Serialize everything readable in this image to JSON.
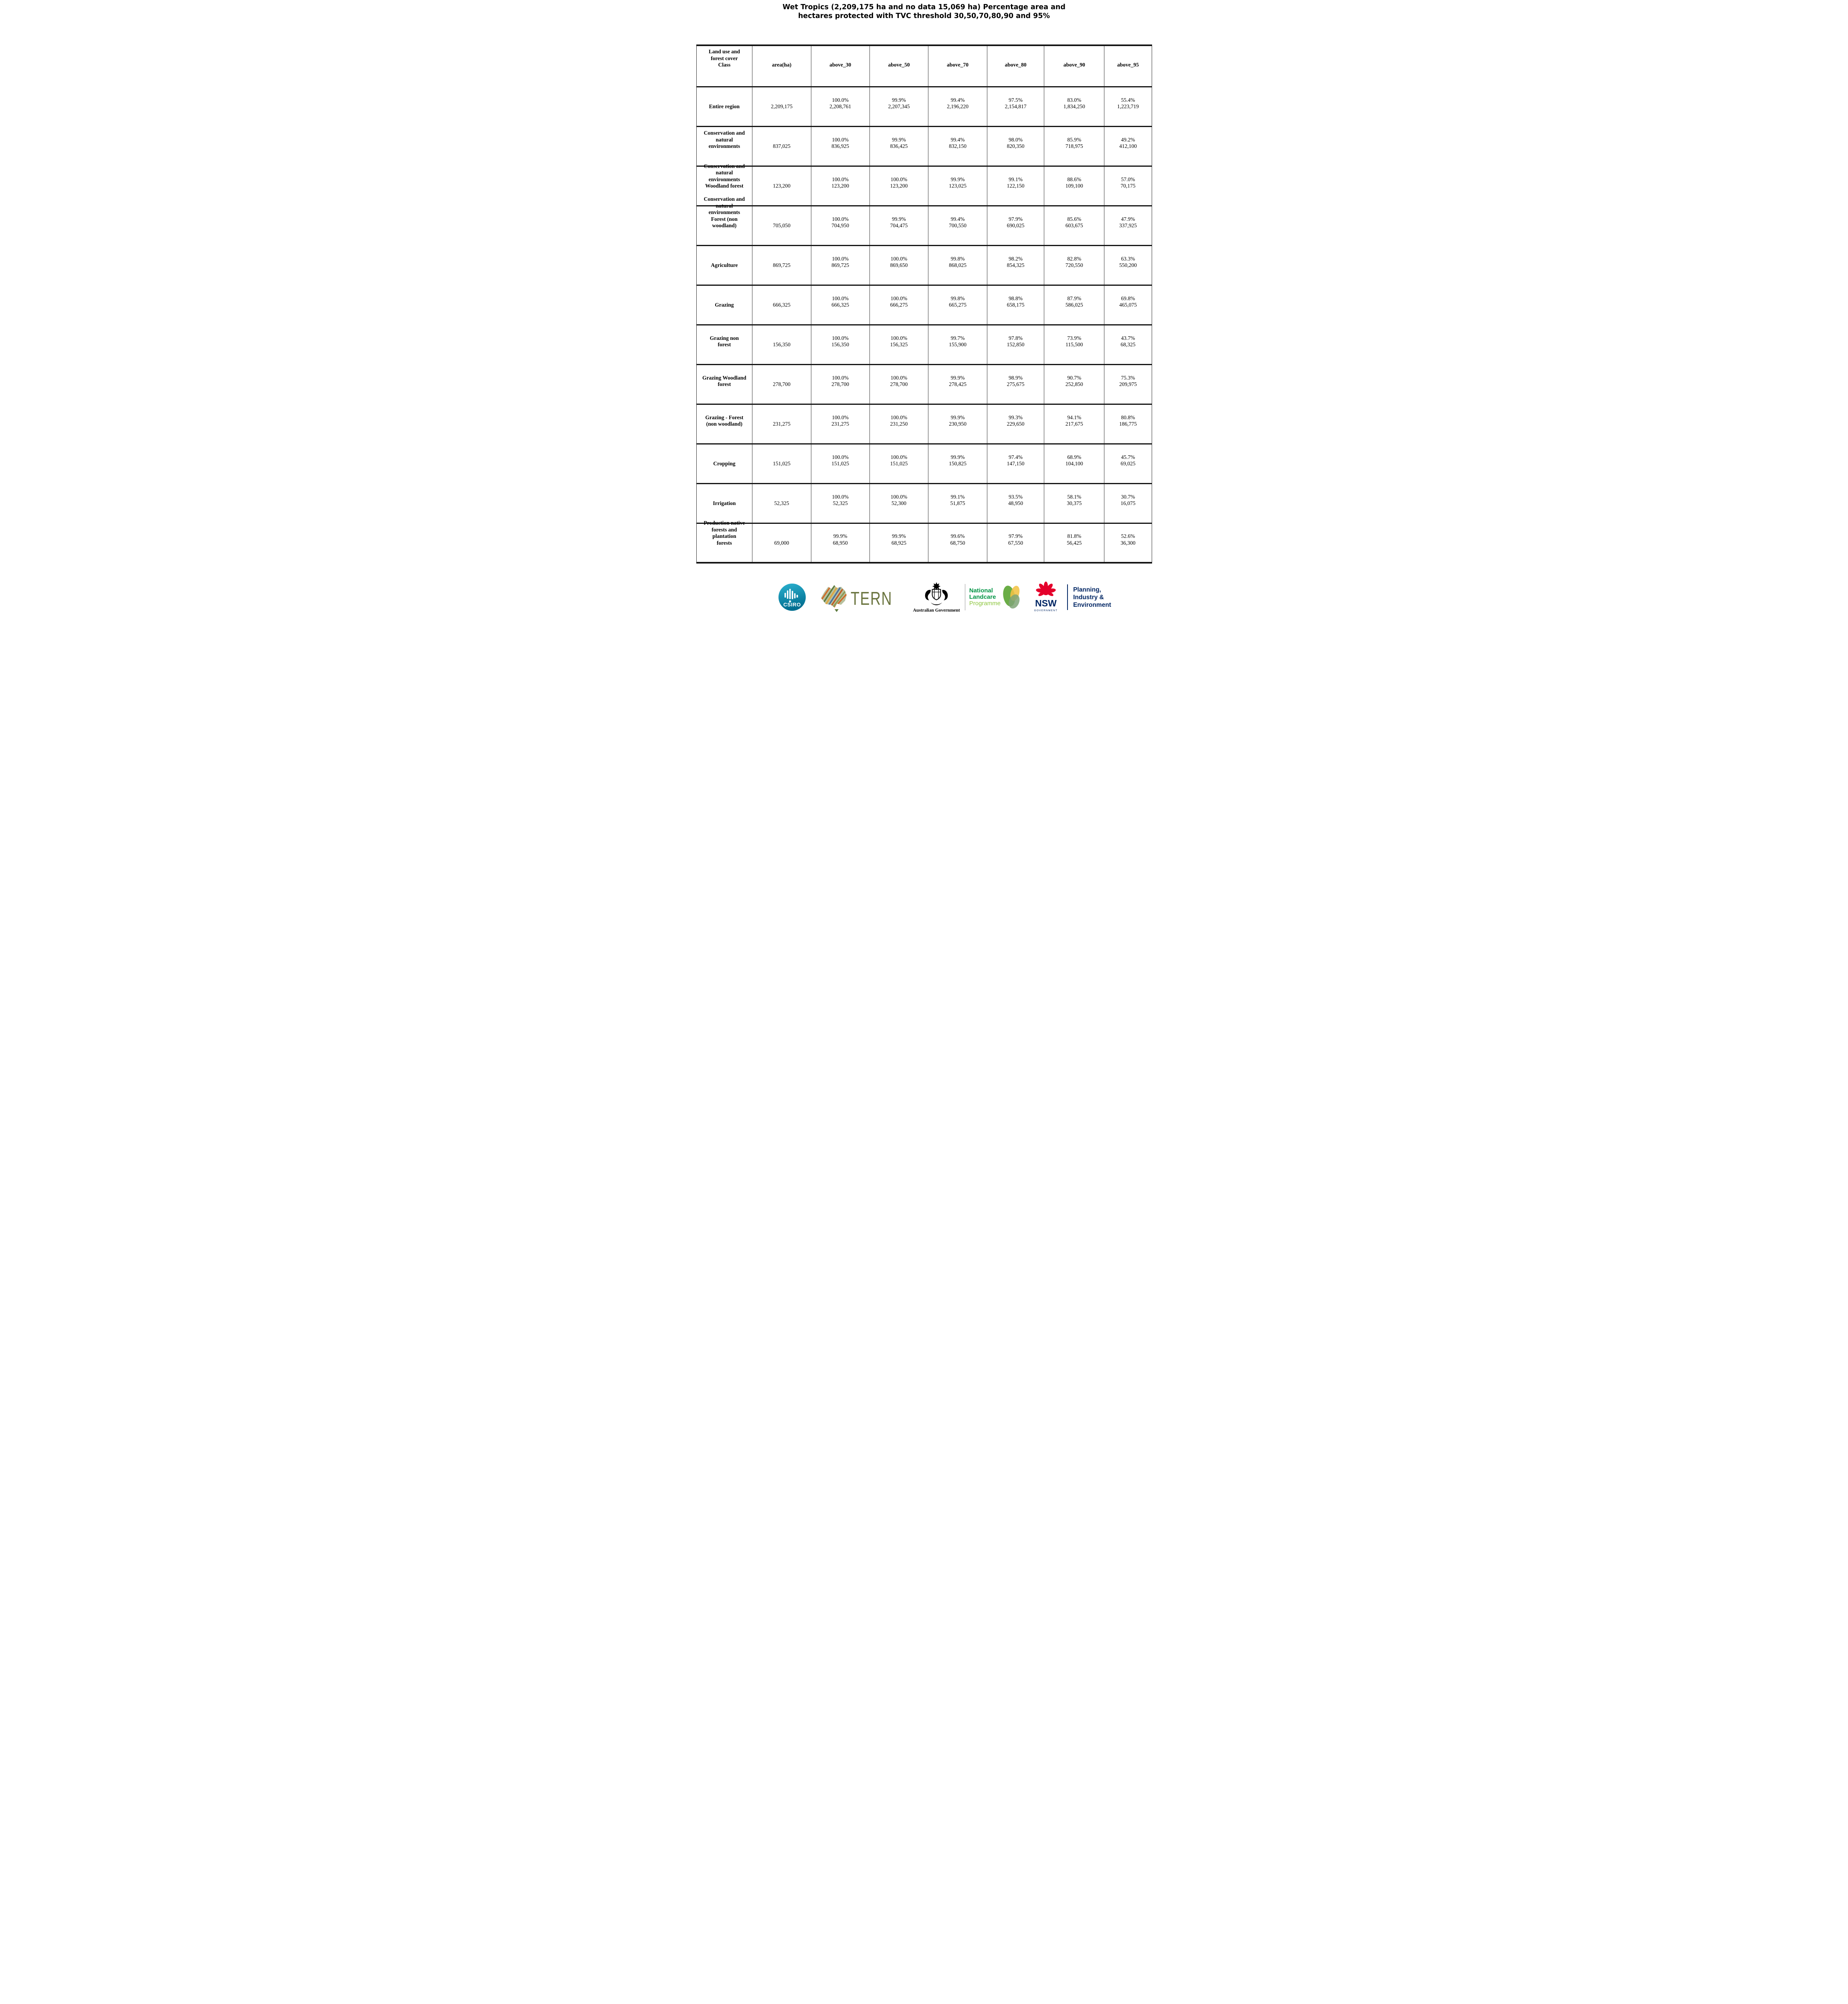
{
  "title": "Wet Tropics (2,209,175 ha and no data 15,069 ha) Percentage area and\nhectares protected with TVC threshold 30,50,70,80,90 and 95%",
  "table": {
    "header": {
      "class_label": "Land use and\nforest cover\nClass",
      "columns": [
        "area(ha)",
        "above_30",
        "above_50",
        "above_70",
        "above_80",
        "above_90",
        "above_95"
      ]
    },
    "rows": [
      {
        "label": "Entire region",
        "area": "2,209,175",
        "values": [
          {
            "pct": "100.0%",
            "ha": "2,208,761"
          },
          {
            "pct": "99.9%",
            "ha": "2,207,345"
          },
          {
            "pct": "99.4%",
            "ha": "2,196,220"
          },
          {
            "pct": "97.5%",
            "ha": "2,154,817"
          },
          {
            "pct": "83.0%",
            "ha": "1,834,250"
          },
          {
            "pct": "55.4%",
            "ha": "1,223,719"
          }
        ]
      },
      {
        "label": "Conservation and\nnatural\nenvironments",
        "area": "837,025",
        "values": [
          {
            "pct": "100.0%",
            "ha": "836,925"
          },
          {
            "pct": "99.9%",
            "ha": "836,425"
          },
          {
            "pct": "99.4%",
            "ha": "832,150"
          },
          {
            "pct": "98.0%",
            "ha": "820,350"
          },
          {
            "pct": "85.9%",
            "ha": "718,975"
          },
          {
            "pct": "49.2%",
            "ha": "412,100"
          }
        ]
      },
      {
        "label": "Conservation and\nnatural\nenvironments\nWoodland forest",
        "area": "123,200",
        "values": [
          {
            "pct": "100.0%",
            "ha": "123,200"
          },
          {
            "pct": "100.0%",
            "ha": "123,200"
          },
          {
            "pct": "99.9%",
            "ha": "123,025"
          },
          {
            "pct": "99.1%",
            "ha": "122,150"
          },
          {
            "pct": "88.6%",
            "ha": "109,100"
          },
          {
            "pct": "57.0%",
            "ha": "70,175"
          }
        ]
      },
      {
        "label": "Conservation and\nnatural\nenvironments\nForest (non\nwoodland)",
        "area": "705,050",
        "values": [
          {
            "pct": "100.0%",
            "ha": "704,950"
          },
          {
            "pct": "99.9%",
            "ha": "704,475"
          },
          {
            "pct": "99.4%",
            "ha": "700,550"
          },
          {
            "pct": "97.9%",
            "ha": "690,025"
          },
          {
            "pct": "85.6%",
            "ha": "603,675"
          },
          {
            "pct": "47.9%",
            "ha": "337,925"
          }
        ]
      },
      {
        "label": "Agriculture",
        "area": "869,725",
        "values": [
          {
            "pct": "100.0%",
            "ha": "869,725"
          },
          {
            "pct": "100.0%",
            "ha": "869,650"
          },
          {
            "pct": "99.8%",
            "ha": "868,025"
          },
          {
            "pct": "98.2%",
            "ha": "854,325"
          },
          {
            "pct": "82.8%",
            "ha": "720,550"
          },
          {
            "pct": "63.3%",
            "ha": "550,200"
          }
        ]
      },
      {
        "label": "Grazing",
        "area": "666,325",
        "values": [
          {
            "pct": "100.0%",
            "ha": "666,325"
          },
          {
            "pct": "100.0%",
            "ha": "666,275"
          },
          {
            "pct": "99.8%",
            "ha": "665,275"
          },
          {
            "pct": "98.8%",
            "ha": "658,175"
          },
          {
            "pct": "87.9%",
            "ha": "586,025"
          },
          {
            "pct": "69.8%",
            "ha": "465,075"
          }
        ]
      },
      {
        "label": "Grazing non\nforest",
        "area": "156,350",
        "values": [
          {
            "pct": "100.0%",
            "ha": "156,350"
          },
          {
            "pct": "100.0%",
            "ha": "156,325"
          },
          {
            "pct": "99.7%",
            "ha": "155,900"
          },
          {
            "pct": "97.8%",
            "ha": "152,850"
          },
          {
            "pct": "73.9%",
            "ha": "115,500"
          },
          {
            "pct": "43.7%",
            "ha": "68,325"
          }
        ]
      },
      {
        "label": "Grazing Woodland\nforest",
        "area": "278,700",
        "values": [
          {
            "pct": "100.0%",
            "ha": "278,700"
          },
          {
            "pct": "100.0%",
            "ha": "278,700"
          },
          {
            "pct": "99.9%",
            "ha": "278,425"
          },
          {
            "pct": "98.9%",
            "ha": "275,675"
          },
          {
            "pct": "90.7%",
            "ha": "252,850"
          },
          {
            "pct": "75.3%",
            "ha": "209,975"
          }
        ]
      },
      {
        "label": "Grazing - Forest\n(non woodland)",
        "area": "231,275",
        "values": [
          {
            "pct": "100.0%",
            "ha": "231,275"
          },
          {
            "pct": "100.0%",
            "ha": "231,250"
          },
          {
            "pct": "99.9%",
            "ha": "230,950"
          },
          {
            "pct": "99.3%",
            "ha": "229,650"
          },
          {
            "pct": "94.1%",
            "ha": "217,675"
          },
          {
            "pct": "80.8%",
            "ha": "186,775"
          }
        ]
      },
      {
        "label": "Cropping",
        "area": "151,025",
        "values": [
          {
            "pct": "100.0%",
            "ha": "151,025"
          },
          {
            "pct": "100.0%",
            "ha": "151,025"
          },
          {
            "pct": "99.9%",
            "ha": "150,825"
          },
          {
            "pct": "97.4%",
            "ha": "147,150"
          },
          {
            "pct": "68.9%",
            "ha": "104,100"
          },
          {
            "pct": "45.7%",
            "ha": "69,025"
          }
        ]
      },
      {
        "label": "Irrigation",
        "area": "52,325",
        "values": [
          {
            "pct": "100.0%",
            "ha": "52,325"
          },
          {
            "pct": "100.0%",
            "ha": "52,300"
          },
          {
            "pct": "99.1%",
            "ha": "51,875"
          },
          {
            "pct": "93.5%",
            "ha": "48,950"
          },
          {
            "pct": "58.1%",
            "ha": "30,375"
          },
          {
            "pct": "30.7%",
            "ha": "16,075"
          }
        ]
      },
      {
        "label": "Production native\nforests and\nplantation\nforests",
        "area": "69,000",
        "values": [
          {
            "pct": "99.9%",
            "ha": "68,950"
          },
          {
            "pct": "99.9%",
            "ha": "68,925"
          },
          {
            "pct": "99.6%",
            "ha": "68,750"
          },
          {
            "pct": "97.9%",
            "ha": "67,550"
          },
          {
            "pct": "81.8%",
            "ha": "56,425"
          },
          {
            "pct": "52.6%",
            "ha": "36,300"
          }
        ]
      }
    ]
  },
  "footer": {
    "csiro_label": "CSIRO",
    "tern_label": "TERN",
    "aus_gov_label": "Australian Government",
    "landcare_line1": "National",
    "landcare_line2": "Landcare",
    "landcare_line3": "Programme",
    "nsw_label": "NSW",
    "nsw_sublabel": "GOVERNMENT",
    "agency_line1": "Planning,",
    "agency_line2": "Industry &",
    "agency_line3": "Environment"
  },
  "colors": {
    "csiro_teal": "#0e9fc0",
    "tern_olive": "#6b7540",
    "landcare_green": "#009444",
    "landcare_light_green": "#8dc63f",
    "nsw_red": "#e4002b",
    "nsw_navy": "#002664",
    "border_dark": "#141414"
  }
}
